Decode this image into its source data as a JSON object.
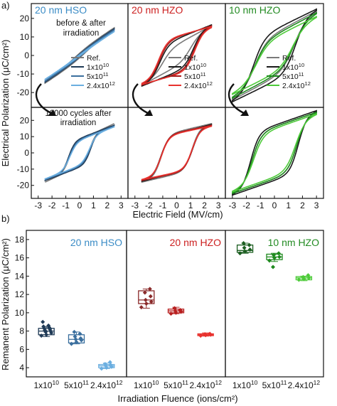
{
  "figure": {
    "panel_a_label": "a)",
    "panel_b_label": "b)",
    "colors": {
      "HSO": [
        "#7a7a7a",
        "#1f3a56",
        "#3b6f9e",
        "#6aaee0"
      ],
      "HZO": [
        "#7a7a7a",
        "#1a1a1a",
        "#a51c1c",
        "#e8322e"
      ],
      "HZO10": [
        "#7a7a7a",
        "#1a1a1a",
        "#1f8a1f",
        "#4ecb3a"
      ]
    }
  },
  "chart_data": [
    {
      "type": "line",
      "panel": "a",
      "title_columns": [
        "20 nm HSO",
        "20 nm HZO",
        "10 nm HZO"
      ],
      "title_colors": [
        "#3b8cc6",
        "#cc1f1f",
        "#228b22"
      ],
      "xlabel": "Electric Field (MV/cm)",
      "ylabel": "Electrical Polarization (μC/cm²)",
      "xlim": [
        -3.5,
        3.5
      ],
      "ylim": [
        -28,
        28
      ],
      "xticks": [
        "-3",
        "-2",
        "-1",
        "0",
        "1",
        "2",
        "3"
      ],
      "yticks": [
        "-20",
        "-10",
        "0",
        "10",
        "20"
      ],
      "annotation_top": [
        "before & after",
        "irradiation"
      ],
      "annotation_bottom": [
        "10000 cycles after",
        "irradiation"
      ],
      "legend": [
        "Ref.",
        "1x10",
        "5x10",
        "2.4x10"
      ],
      "legend_exponents": [
        "",
        "10",
        "11",
        "12"
      ],
      "series": [
        {
          "name": "Ref."
        },
        {
          "name": "1x10^10"
        },
        {
          "name": "5x10^11"
        },
        {
          "name": "2.4x10^12"
        }
      ],
      "loops": {
        "HSO_before": {
          "ps": [
            3,
            2.5,
            2.2,
            1.6
          ],
          "pmax": [
            15,
            14.5,
            14,
            13
          ],
          "ec": [
            0.6,
            0.45,
            0.4,
            0.3
          ],
          "w": [
            1.4,
            1.5,
            1.55,
            1.6
          ],
          "emax": 2.5
        },
        "HZO_before": {
          "ps": [
            6,
            9,
            10,
            10.5
          ],
          "pmax": [
            16,
            16.5,
            16,
            15.5
          ],
          "ec": [
            1.0,
            1.2,
            1.25,
            1.3
          ],
          "w": [
            0.7,
            0.65,
            0.65,
            0.65
          ],
          "emax": 2.5
        },
        "HZO10_before": {
          "ps": [
            12,
            14,
            11,
            10
          ],
          "pmax": [
            24,
            25,
            23,
            21
          ],
          "ec": [
            1.4,
            1.5,
            1.4,
            1.3
          ],
          "w": [
            0.85,
            0.8,
            0.85,
            0.9
          ],
          "emax": 3.0
        },
        "HSO_after": {
          "ps": [
            8,
            9,
            8.5,
            8
          ],
          "pmax": [
            18,
            17,
            16.5,
            16
          ],
          "ec": [
            0.75,
            0.8,
            0.75,
            0.7
          ],
          "w": [
            0.45,
            0.45,
            0.48,
            0.5
          ],
          "emax": 2.5
        },
        "HZO_after": {
          "ps": [
            13,
            12,
            12.5,
            12
          ],
          "pmax": [
            18,
            17.5,
            17,
            16.5
          ],
          "ec": [
            1.1,
            1.15,
            1.12,
            1.1
          ],
          "w": [
            0.55,
            0.55,
            0.55,
            0.55
          ],
          "emax": 2.5
        },
        "HZO10_after": {
          "ps": [
            16,
            17,
            16,
            15
          ],
          "pmax": [
            25,
            26,
            25,
            24
          ],
          "ec": [
            1.6,
            1.7,
            1.6,
            1.5
          ],
          "w": [
            0.65,
            0.6,
            0.65,
            0.7
          ],
          "emax": 3.0
        }
      }
    },
    {
      "type": "box",
      "panel": "b",
      "title_columns": [
        "20 nm HSO",
        "20 nm HZO",
        "10 nm HZO"
      ],
      "title_colors": [
        "#3b8cc6",
        "#cc1f1f",
        "#228b22"
      ],
      "xlabel": "Irradiation Fluence (ions/cm²)",
      "ylabel": "Remanent Polarization (μC/cm²)",
      "ylim": [
        3,
        19
      ],
      "yticks": [
        "4",
        "6",
        "8",
        "10",
        "12",
        "14",
        "16",
        "18"
      ],
      "categories": [
        "1x10",
        "5x10",
        "2.4x10"
      ],
      "category_exponents": [
        "10",
        "11",
        "12"
      ],
      "groups": [
        {
          "sample": "20 nm HSO",
          "boxes": [
            {
              "color": "#1f3a56",
              "q1": 7.6,
              "med": 8.0,
              "q3": 8.3,
              "lo": 7.4,
              "hi": 8.5,
              "points": [
                7.5,
                7.6,
                7.8,
                7.9,
                8.0,
                8.1,
                8.2,
                8.3,
                8.4,
                8.5,
                8.6,
                9.0
              ]
            },
            {
              "color": "#3b6f9e",
              "q1": 6.7,
              "med": 7.1,
              "q3": 7.6,
              "lo": 6.6,
              "hi": 7.9,
              "points": [
                6.6,
                6.8,
                7.0,
                7.1,
                7.2,
                7.4,
                7.7,
                7.9
              ]
            },
            {
              "color": "#6aaee0",
              "q1": 4.0,
              "med": 4.2,
              "q3": 4.35,
              "lo": 3.9,
              "hi": 4.5,
              "points": [
                3.9,
                4.0,
                4.1,
                4.2,
                4.3,
                4.4,
                4.6
              ]
            }
          ]
        },
        {
          "sample": "20 nm HZO",
          "boxes": [
            {
              "color": "#8a2a2a",
              "q1": 11.0,
              "med": 11.4,
              "q3": 12.4,
              "lo": 10.5,
              "hi": 12.6,
              "points": [
                10.6,
                11.0,
                11.2,
                11.4,
                11.8,
                12.2,
                12.6
              ]
            },
            {
              "color": "#b82020",
              "q1": 10.0,
              "med": 10.2,
              "q3": 10.4,
              "lo": 9.9,
              "hi": 10.6,
              "points": [
                9.9,
                10.0,
                10.1,
                10.2,
                10.3,
                10.5
              ]
            },
            {
              "color": "#e8322e",
              "q1": 7.5,
              "med": 7.6,
              "q3": 7.7,
              "lo": 7.45,
              "hi": 7.8,
              "points": [
                7.5,
                7.55,
                7.6,
                7.65,
                7.7
              ]
            }
          ]
        },
        {
          "sample": "10 nm HZO",
          "boxes": [
            {
              "color": "#1b5e20",
              "q1": 16.6,
              "med": 16.8,
              "q3": 17.4,
              "lo": 16.5,
              "hi": 17.6,
              "points": [
                16.5,
                16.7,
                16.9,
                17.1,
                17.4,
                17.6
              ]
            },
            {
              "color": "#1f8a1f",
              "q1": 15.8,
              "med": 16.1,
              "q3": 16.4,
              "lo": 15.6,
              "hi": 16.5,
              "points": [
                15.7,
                16.0,
                16.1,
                16.3,
                16.5,
                15.0
              ]
            },
            {
              "color": "#4ecb3a",
              "q1": 13.6,
              "med": 13.8,
              "q3": 13.95,
              "lo": 13.5,
              "hi": 14.0,
              "points": [
                13.6,
                13.7,
                13.8,
                13.9,
                14.1
              ]
            }
          ]
        }
      ]
    }
  ]
}
